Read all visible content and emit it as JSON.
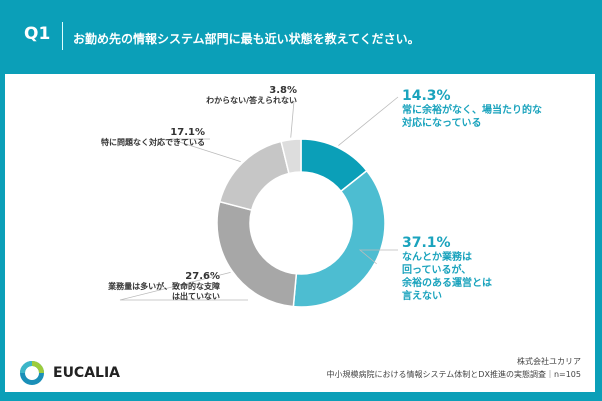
{
  "header": {
    "q": "Q1",
    "title": "お勤め先の情報システム部門に最も近い状態を教えてください。"
  },
  "chart_data": {
    "type": "pie",
    "donut": true,
    "title": "お勤め先の情報システム部門に最も近い状態を教えてください。",
    "slices": [
      {
        "label": "常に余裕がなく、場当たり的な対応になっている",
        "value": 14.3,
        "pct": "14.3%",
        "color": "#0b9fb8"
      },
      {
        "label": "なんとか業務は回っているが、余裕のある運営とは言えない",
        "value": 37.1,
        "pct": "37.1%",
        "color": "#4dbdd1"
      },
      {
        "label": "業務量は多いが、致命的な支障は出ていない",
        "value": 27.6,
        "pct": "27.6%",
        "color": "#a7a7a7"
      },
      {
        "label": "特に問題なく対応できている",
        "value": 17.1,
        "pct": "17.1%",
        "color": "#c6c6c6"
      },
      {
        "label": "わからない/答えられない",
        "value": 3.8,
        "pct": "3.8%",
        "color": "#dddddd"
      }
    ],
    "start": "top",
    "direction": "clockwise"
  },
  "labels": {
    "s0": [
      "常に余裕がなく、場当たり的な",
      "対応になっている"
    ],
    "s1": [
      "なんとか業務は",
      "回っているが、",
      "余裕のある運営とは",
      "言えない"
    ],
    "s2": [
      "業務量は多いが、致命的な支障",
      "は出ていない"
    ],
    "s3": [
      "特に問題なく対応できている"
    ],
    "s4": [
      "わからない/答えられない"
    ]
  },
  "logo": "EUCALIA",
  "footer": {
    "company": "株式会社ユカリア",
    "survey": "中小規模病院における情報システム体制とDX推進の実態調査｜n=105"
  }
}
